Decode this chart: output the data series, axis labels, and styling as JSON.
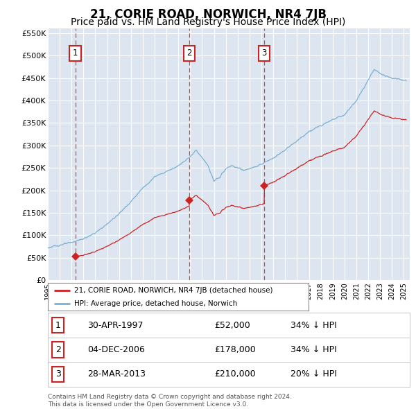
{
  "title": "21, CORIE ROAD, NORWICH, NR4 7JB",
  "subtitle": "Price paid vs. HM Land Registry's House Price Index (HPI)",
  "title_fontsize": 12,
  "subtitle_fontsize": 10,
  "plot_bg_color": "#dde6f0",
  "grid_color": "#ffffff",
  "hpi_line_color": "#7ab0d4",
  "price_line_color": "#cc2222",
  "sale_marker_color": "#cc2222",
  "vline_color": "#cc3333",
  "label_box_color": "#cc2222",
  "ylim": [
    0,
    560000
  ],
  "xlim_start": 1995.0,
  "xlim_end": 2025.5,
  "ytick_labels": [
    "£0",
    "£50K",
    "£100K",
    "£150K",
    "£200K",
    "£250K",
    "£300K",
    "£350K",
    "£400K",
    "£450K",
    "£500K",
    "£550K"
  ],
  "ytick_values": [
    0,
    50000,
    100000,
    150000,
    200000,
    250000,
    300000,
    350000,
    400000,
    450000,
    500000,
    550000
  ],
  "xtick_years": [
    1995,
    1996,
    1997,
    1998,
    1999,
    2000,
    2001,
    2002,
    2003,
    2004,
    2005,
    2006,
    2007,
    2008,
    2009,
    2010,
    2011,
    2012,
    2013,
    2014,
    2015,
    2016,
    2017,
    2018,
    2019,
    2020,
    2021,
    2022,
    2023,
    2024,
    2025
  ],
  "sales": [
    {
      "label": "1",
      "date": 1997.33,
      "price": 52000,
      "display_date": "30-APR-1997",
      "display_price": "£52,000",
      "display_pct": "34% ↓ HPI"
    },
    {
      "label": "2",
      "date": 2006.92,
      "price": 178000,
      "display_date": "04-DEC-2006",
      "display_price": "£178,000",
      "display_pct": "34% ↓ HPI"
    },
    {
      "label": "3",
      "date": 2013.23,
      "price": 210000,
      "display_date": "28-MAR-2013",
      "display_price": "£210,000",
      "display_pct": "20% ↓ HPI"
    }
  ],
  "legend_line1": "21, CORIE ROAD, NORWICH, NR4 7JB (detached house)",
  "legend_line2": "HPI: Average price, detached house, Norwich",
  "footer": "Contains HM Land Registry data © Crown copyright and database right 2024.\nThis data is licensed under the Open Government Licence v3.0."
}
